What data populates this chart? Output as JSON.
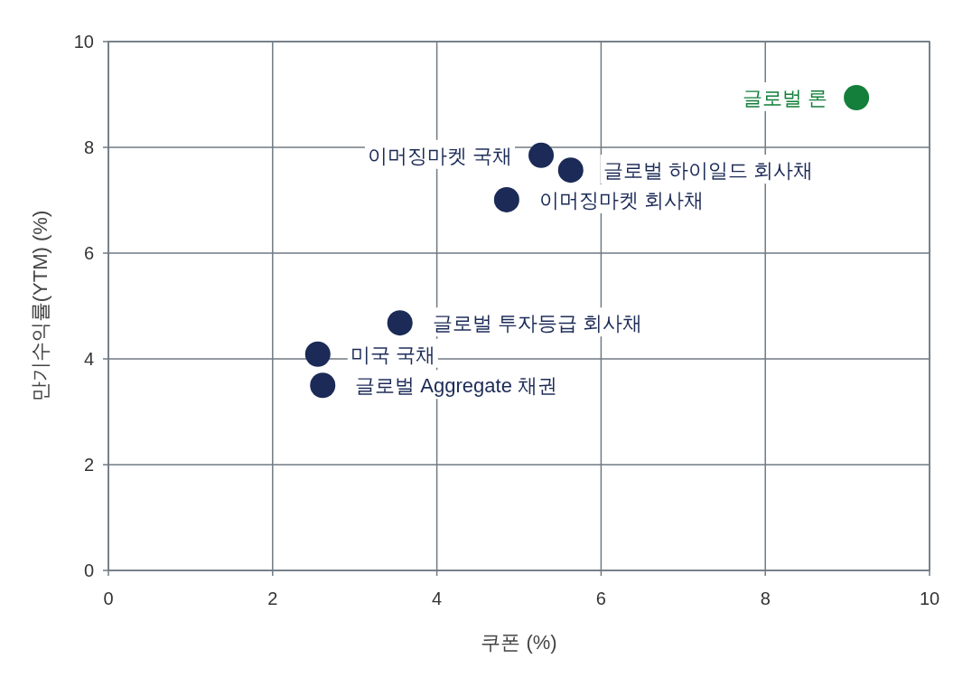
{
  "chart_data": {
    "type": "scatter",
    "xlabel": "쿠폰 (%)",
    "ylabel": "만기수익률(YTM) (%)",
    "xlim": [
      0,
      10
    ],
    "ylim": [
      0,
      10
    ],
    "xticks": [
      0,
      2,
      4,
      6,
      8,
      10
    ],
    "yticks": [
      0,
      2,
      4,
      6,
      8,
      10
    ],
    "grid": true,
    "marker": "circle",
    "series": [
      {
        "name": "글로벌 론",
        "color": "#137f3a",
        "x": [
          9.11
        ],
        "values": [
          8.94
        ]
      },
      {
        "name": "이머징마켓 국채",
        "color": "#1b2a56",
        "x": [
          5.27
        ],
        "values": [
          7.85
        ]
      },
      {
        "name": "글로벌 하이일드 회사채",
        "color": "#1b2a56",
        "x": [
          5.63
        ],
        "values": [
          7.57
        ]
      },
      {
        "name": "이머징마켓 회사채",
        "color": "#1b2a56",
        "x": [
          4.85
        ],
        "values": [
          7.01
        ]
      },
      {
        "name": "글로벌 투자등급 회사채",
        "color": "#1b2a56",
        "x": [
          3.55
        ],
        "values": [
          4.68
        ]
      },
      {
        "name": "미국 국채",
        "color": "#1b2a56",
        "x": [
          2.55
        ],
        "values": [
          4.09
        ]
      },
      {
        "name": "글로벌 Aggregate 채권",
        "color": "#1b2a56",
        "x": [
          2.61
        ],
        "values": [
          3.5
        ]
      }
    ]
  }
}
